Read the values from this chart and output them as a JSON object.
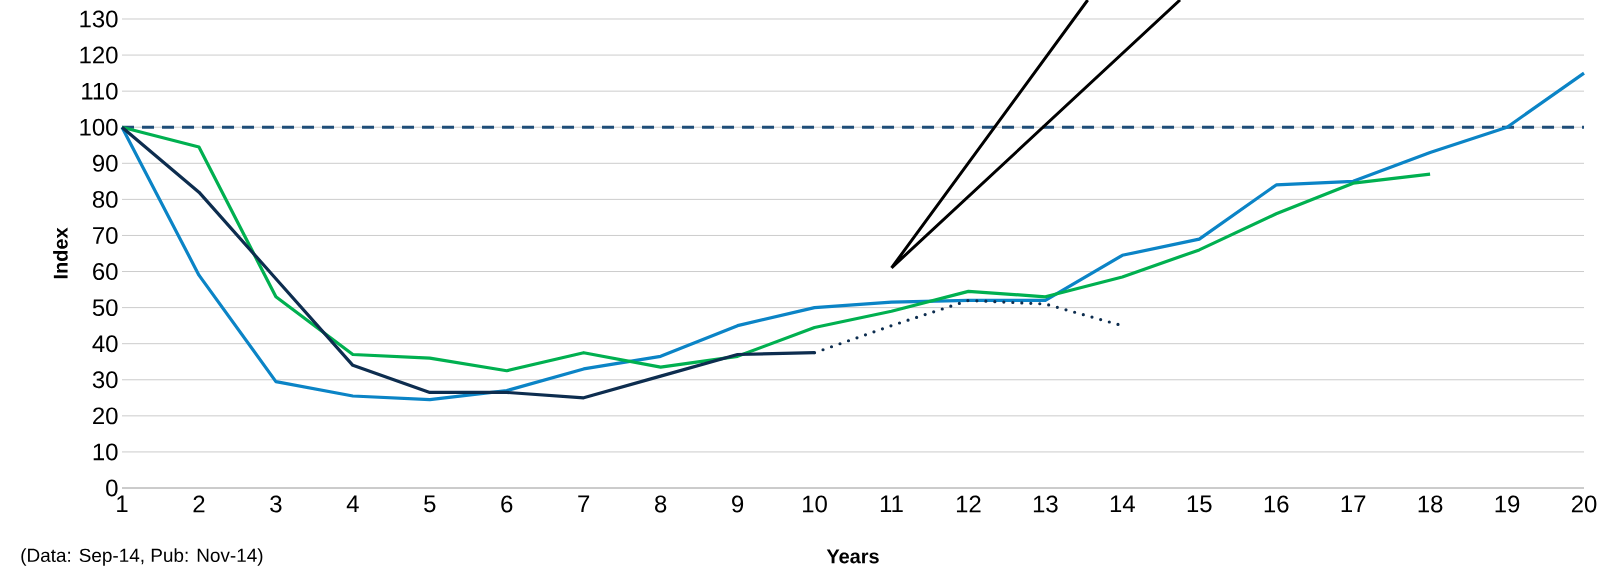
{
  "chart_data": {
    "type": "line",
    "xlabel": "Years",
    "ylabel": "Index",
    "annotations": [
      "(Data: Sep-14, Pub: Nov-14)"
    ],
    "xlim": [
      1,
      20
    ],
    "ylim": [
      0,
      130
    ],
    "xticks": [
      1,
      2,
      3,
      4,
      5,
      6,
      7,
      8,
      9,
      10,
      11,
      12,
      13,
      14,
      15,
      16,
      17,
      18,
      19,
      20
    ],
    "yticks": [
      0,
      10,
      20,
      30,
      40,
      50,
      60,
      70,
      80,
      90,
      100,
      110,
      120,
      130
    ],
    "grid": "y",
    "ref_lines": [
      {
        "axis": "y",
        "value": 100,
        "color": "#1f4e79",
        "line_style": "dashed"
      }
    ],
    "series": [
      {
        "color": "#0b84c6",
        "x": [
          1,
          2,
          3,
          4,
          5,
          6,
          7,
          8,
          9,
          10,
          11,
          12,
          13,
          14,
          15,
          16,
          17,
          18,
          19,
          20
        ],
        "values": [
          100,
          59,
          29.5,
          25.5,
          24.5,
          27,
          33,
          36.5,
          45,
          50,
          51.5,
          52,
          52,
          64.5,
          69,
          84,
          85,
          93,
          100,
          115
        ]
      },
      {
        "color": "#00b050",
        "x": [
          1,
          2,
          3,
          4,
          5,
          6,
          7,
          8,
          9,
          10,
          11,
          12,
          13,
          14,
          15,
          16,
          17,
          18
        ],
        "values": [
          100,
          94.5,
          53,
          37,
          36,
          32.5,
          37.5,
          33.5,
          36.5,
          44.5,
          49,
          54.5,
          53,
          58.5,
          66,
          76,
          84.5,
          87
        ]
      },
      {
        "color": "#0d2d4f",
        "x": [
          1,
          2,
          3,
          4,
          5,
          6,
          7,
          8,
          9,
          10
        ],
        "values": [
          100,
          82,
          58,
          34,
          26.5,
          26.5,
          25,
          31,
          37,
          37.5
        ]
      },
      {
        "color": "#0d2d4f",
        "line_style": "dotted",
        "x": [
          10,
          11,
          12,
          13,
          14
        ],
        "values": [
          37.5,
          45,
          52,
          51,
          45
        ]
      }
    ]
  }
}
